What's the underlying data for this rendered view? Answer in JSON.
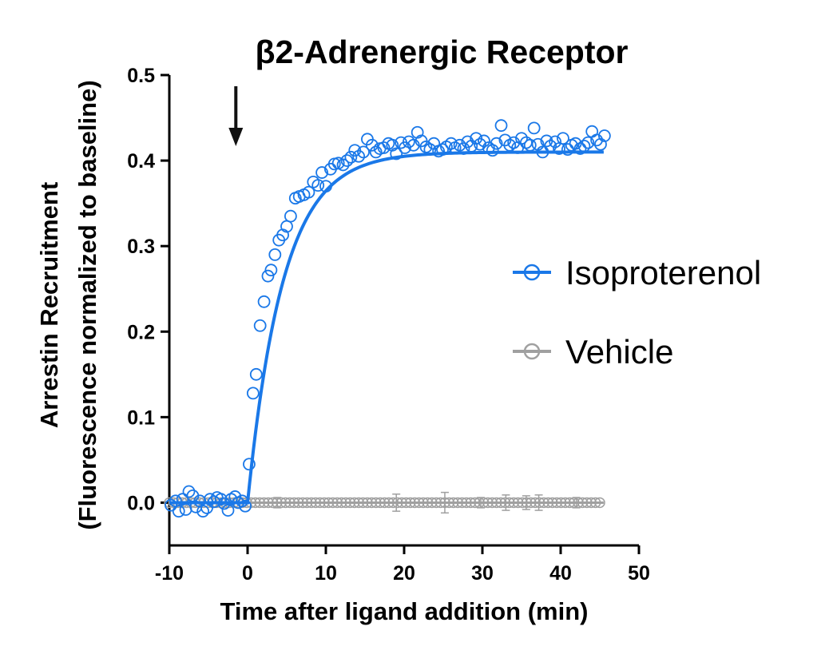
{
  "chart_data": {
    "type": "scatter",
    "title": "β2-Adrenergic Receptor",
    "xlabel": "Time after ligand addition (min)",
    "ylabel_line1": "Arrestin Recruitment",
    "ylabel_line2": "(Fluorescence normalized to baseline)",
    "xlim": [
      -10,
      50
    ],
    "ylim": [
      -0.05,
      0.5
    ],
    "x_ticks": [
      -10,
      0,
      10,
      20,
      30,
      40,
      50
    ],
    "x_tick_labels": [
      "-10",
      "0",
      "10",
      "20",
      "30",
      "40",
      "50"
    ],
    "y_ticks": [
      0.0,
      0.1,
      0.2,
      0.3,
      0.4,
      0.5
    ],
    "y_tick_labels": [
      "0.0",
      "0.1",
      "0.2",
      "0.3",
      "0.4",
      "0.5"
    ],
    "legend_position": "right",
    "annotation": {
      "type": "arrow-down",
      "x": -1.5
    },
    "series": [
      {
        "name": "Isoproterenol",
        "color": "#1a78e8",
        "marker": "open-circle",
        "fit": {
          "type": "one-phase-association",
          "x0": 0,
          "plateau": 0.41,
          "k": 0.22,
          "x_end": 45.5
        },
        "points": [
          [
            -9.8,
            -0.003
          ],
          [
            -9.2,
            0.002
          ],
          [
            -8.8,
            -0.01
          ],
          [
            -8.3,
            0.004
          ],
          [
            -7.9,
            -0.008
          ],
          [
            -7.5,
            0.013
          ],
          [
            -7.0,
            0.008
          ],
          [
            -6.6,
            -0.005
          ],
          [
            -6.1,
            0.002
          ],
          [
            -5.7,
            -0.01
          ],
          [
            -5.2,
            -0.006
          ],
          [
            -4.8,
            0.004
          ],
          [
            -4.3,
            0.001
          ],
          [
            -3.9,
            0.006
          ],
          [
            -3.4,
            0.004
          ],
          [
            -3.0,
            -0.001
          ],
          [
            -2.5,
            -0.009
          ],
          [
            -2.1,
            0.004
          ],
          [
            -1.6,
            0.007
          ],
          [
            -1.2,
            0.0
          ],
          [
            -0.7,
            0.002
          ],
          [
            -0.3,
            -0.004
          ],
          [
            0.2,
            0.045
          ],
          [
            0.7,
            0.128
          ],
          [
            1.1,
            0.15
          ],
          [
            1.6,
            0.207
          ],
          [
            2.1,
            0.235
          ],
          [
            2.6,
            0.265
          ],
          [
            3.0,
            0.272
          ],
          [
            3.5,
            0.29
          ],
          [
            4.0,
            0.307
          ],
          [
            4.5,
            0.313
          ],
          [
            5.0,
            0.323
          ],
          [
            5.5,
            0.335
          ],
          [
            6.1,
            0.356
          ],
          [
            6.6,
            0.358
          ],
          [
            7.2,
            0.36
          ],
          [
            7.8,
            0.363
          ],
          [
            8.4,
            0.375
          ],
          [
            9.0,
            0.371
          ],
          [
            9.5,
            0.386
          ],
          [
            10.0,
            0.37
          ],
          [
            10.6,
            0.39
          ],
          [
            11.1,
            0.396
          ],
          [
            11.6,
            0.397
          ],
          [
            12.2,
            0.395
          ],
          [
            12.7,
            0.4
          ],
          [
            13.2,
            0.404
          ],
          [
            13.7,
            0.412
          ],
          [
            14.2,
            0.405
          ],
          [
            14.8,
            0.41
          ],
          [
            15.3,
            0.425
          ],
          [
            15.9,
            0.418
          ],
          [
            16.4,
            0.41
          ],
          [
            16.9,
            0.414
          ],
          [
            17.4,
            0.415
          ],
          [
            18.0,
            0.42
          ],
          [
            18.5,
            0.418
          ],
          [
            19.0,
            0.408
          ],
          [
            19.6,
            0.421
          ],
          [
            20.1,
            0.415
          ],
          [
            20.6,
            0.422
          ],
          [
            21.2,
            0.418
          ],
          [
            21.7,
            0.433
          ],
          [
            22.2,
            0.423
          ],
          [
            22.8,
            0.416
          ],
          [
            23.3,
            0.413
          ],
          [
            23.8,
            0.42
          ],
          [
            24.4,
            0.411
          ],
          [
            24.9,
            0.413
          ],
          [
            25.4,
            0.416
          ],
          [
            26.0,
            0.42
          ],
          [
            26.5,
            0.415
          ],
          [
            27.1,
            0.418
          ],
          [
            27.6,
            0.414
          ],
          [
            28.1,
            0.422
          ],
          [
            28.6,
            0.417
          ],
          [
            29.2,
            0.426
          ],
          [
            29.7,
            0.419
          ],
          [
            30.2,
            0.423
          ],
          [
            30.8,
            0.415
          ],
          [
            31.3,
            0.412
          ],
          [
            31.8,
            0.42
          ],
          [
            32.4,
            0.441
          ],
          [
            32.9,
            0.424
          ],
          [
            33.5,
            0.418
          ],
          [
            34.0,
            0.421
          ],
          [
            34.5,
            0.415
          ],
          [
            35.0,
            0.426
          ],
          [
            35.6,
            0.421
          ],
          [
            36.1,
            0.418
          ],
          [
            36.6,
            0.438
          ],
          [
            37.1,
            0.419
          ],
          [
            37.7,
            0.41
          ],
          [
            38.2,
            0.423
          ],
          [
            38.7,
            0.417
          ],
          [
            39.3,
            0.422
          ],
          [
            39.8,
            0.414
          ],
          [
            40.3,
            0.426
          ],
          [
            40.9,
            0.413
          ],
          [
            41.4,
            0.418
          ],
          [
            41.9,
            0.42
          ],
          [
            42.5,
            0.414
          ],
          [
            43.0,
            0.417
          ],
          [
            43.5,
            0.421
          ],
          [
            44.0,
            0.434
          ],
          [
            44.6,
            0.424
          ],
          [
            45.1,
            0.419
          ],
          [
            45.6,
            0.429
          ]
        ]
      },
      {
        "name": "Vehicle",
        "color": "#a0a0a0",
        "marker": "open-circle",
        "y": 0.0,
        "x_start": -10,
        "x_end": 45.5,
        "x_step": 0.55,
        "error_bars": [
          {
            "x": 3.8,
            "err": 0.006
          },
          {
            "x": 19.0,
            "err": 0.01
          },
          {
            "x": 25.2,
            "err": 0.012
          },
          {
            "x": 29.8,
            "err": 0.006
          },
          {
            "x": 33.0,
            "err": 0.009
          },
          {
            "x": 35.6,
            "err": 0.008
          },
          {
            "x": 37.2,
            "err": 0.009
          },
          {
            "x": 42.0,
            "err": 0.006
          }
        ]
      }
    ]
  }
}
